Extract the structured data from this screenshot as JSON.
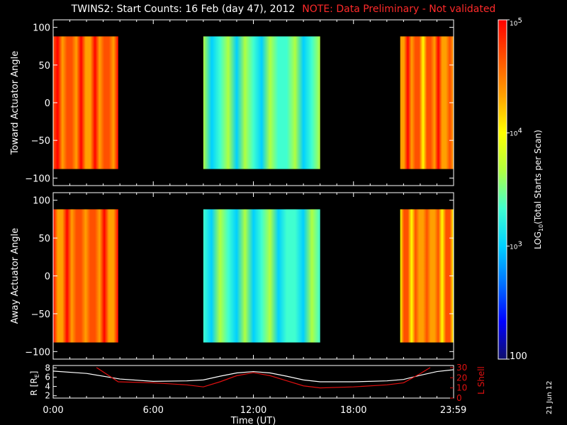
{
  "header": {
    "title": "TWINS2: Start Counts: 16 Feb (day  47), 2012",
    "note": "NOTE: Data Preliminary - Not validated"
  },
  "stamp": "21 Jun 12",
  "colors": {
    "note": "#ff2a2a",
    "r_line": "#ffffff",
    "lshell_line": "#e01010",
    "frame": "#ffffff",
    "colormap": [
      "#10106a",
      "#0000ff",
      "#0070ff",
      "#00d0ff",
      "#40ffd0",
      "#b0ff40",
      "#ffff00",
      "#ffa000",
      "#ff5000",
      "#ff0000"
    ]
  },
  "chart_data": [
    {
      "type": "heatmap",
      "panel": "toward",
      "ylabel": "Toward Actuator Angle",
      "yticks": [
        "100",
        "50",
        "0",
        "−50",
        "−100"
      ],
      "ylim": [
        -110,
        110
      ],
      "xlim_hours": [
        0,
        24
      ],
      "angle_range": [
        -88,
        88
      ],
      "scans": [
        {
          "start_hour": 0.0,
          "end_hour": 3.9,
          "log10_counts": 4.6
        },
        {
          "start_hour": 9.0,
          "end_hour": 16.0,
          "log10_counts": 3.35
        },
        {
          "start_hour": 20.8,
          "end_hour": 24.0,
          "log10_counts": 4.5
        }
      ]
    },
    {
      "type": "heatmap",
      "panel": "away",
      "ylabel": "Away Actuator Angle",
      "yticks": [
        "100",
        "50",
        "0",
        "−50",
        "−100"
      ],
      "ylim": [
        -110,
        110
      ],
      "xlim_hours": [
        0,
        24
      ],
      "angle_range": [
        -88,
        88
      ],
      "scans": [
        {
          "start_hour": 0.0,
          "end_hour": 3.9,
          "log10_counts": 4.55
        },
        {
          "start_hour": 9.0,
          "end_hour": 16.0,
          "log10_counts": 3.3
        },
        {
          "start_hour": 20.8,
          "end_hour": 24.0,
          "log10_counts": 4.45
        }
      ]
    },
    {
      "type": "line",
      "panel": "orbit",
      "ylabel_left": "R [R",
      "ylabel_left_sub": "E",
      "ylabel_left_end": "]",
      "ylabel_right": "L Shell",
      "yticks_left": [
        "8",
        "6",
        "4",
        "2"
      ],
      "yticks_right": [
        "30",
        "20",
        "10",
        "0"
      ],
      "ylim_left": [
        1.5,
        8.5
      ],
      "ylim_right": [
        0,
        32
      ],
      "x_hours": [
        0,
        2,
        4,
        6,
        8,
        9,
        10,
        11,
        12,
        13,
        14,
        15,
        16,
        18,
        20,
        21,
        22,
        23,
        24
      ],
      "series": [
        {
          "name": "R",
          "values": [
            7.3,
            6.8,
            5.6,
            5.1,
            5.2,
            5.4,
            6.2,
            6.9,
            7.2,
            6.9,
            6.2,
            5.4,
            5.0,
            5.0,
            5.2,
            5.5,
            6.4,
            7.2,
            7.6
          ]
        },
        {
          "name": "L Shell",
          "x_hours": [
            2.6,
            3.9,
            6,
            8,
            9,
            10,
            11,
            12,
            13,
            14,
            15,
            16,
            18,
            20,
            21,
            22,
            22.6
          ],
          "values": [
            30,
            16,
            15,
            13,
            11,
            16,
            22,
            25,
            22,
            17,
            12,
            10,
            11,
            13,
            15,
            24,
            30
          ]
        }
      ],
      "xticks": [
        "0:00",
        "6:00",
        "12:00",
        "18:00",
        "23:59"
      ],
      "xtick_hours": [
        0,
        6,
        12,
        18,
        23.983
      ],
      "xlabel": "Time (UT)"
    }
  ],
  "colorbar": {
    "label": "LOG",
    "label_sub": "10",
    "label_rest": "(Total Starts per Scan)",
    "ticks": [
      {
        "label": "10",
        "sup": "5",
        "log": 5
      },
      {
        "label": "10",
        "sup": "4",
        "log": 4
      },
      {
        "label": "10",
        "sup": "3",
        "log": 3
      },
      {
        "label": "100",
        "sup": "",
        "log": 2
      }
    ],
    "range_log": [
      2,
      5
    ]
  }
}
